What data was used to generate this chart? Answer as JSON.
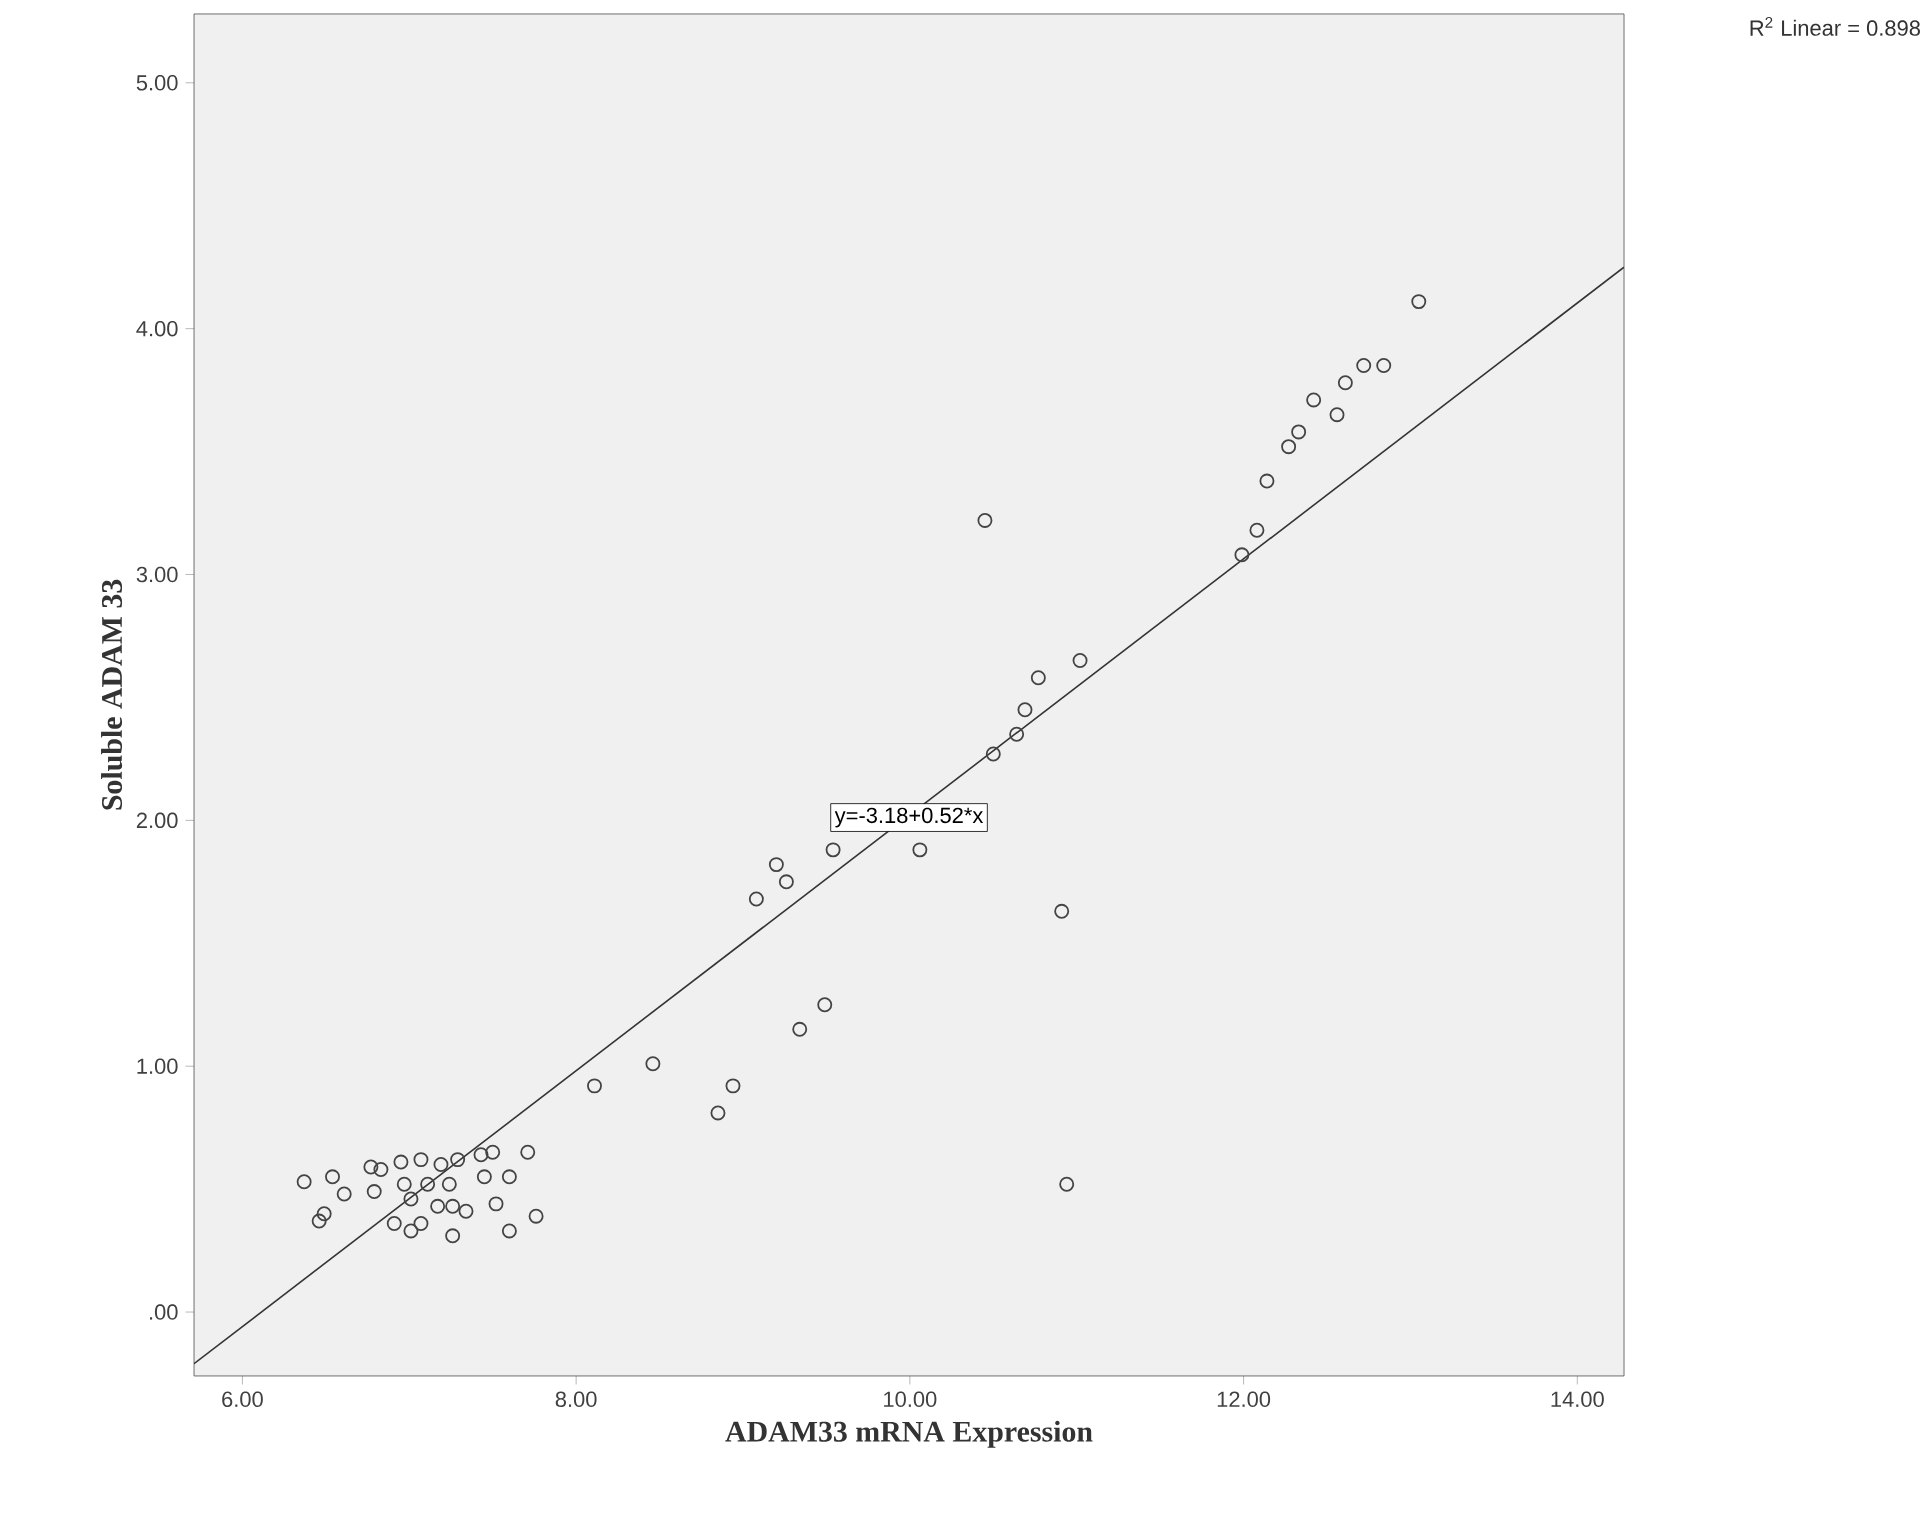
{
  "chart_data": {
    "type": "scatter",
    "xlabel": "ADAM33 mRNA Expression",
    "ylabel": "Soluble ADAM 33",
    "xlim": [
      5.71,
      14.28
    ],
    "ylim": [
      -0.26,
      5.28
    ],
    "xticks": [
      {
        "value": 6,
        "label": "6.00"
      },
      {
        "value": 8,
        "label": "8.00"
      },
      {
        "value": 10,
        "label": "10.00"
      },
      {
        "value": 12,
        "label": "12.00"
      },
      {
        "value": 14,
        "label": "14.00"
      }
    ],
    "yticks": [
      {
        "value": 0,
        "label": ".00"
      },
      {
        "value": 1,
        "label": "1.00"
      },
      {
        "value": 2,
        "label": "2.00"
      },
      {
        "value": 3,
        "label": "3.00"
      },
      {
        "value": 4,
        "label": "4.00"
      },
      {
        "value": 5,
        "label": "5.00"
      }
    ],
    "grid": false,
    "marker": "circle",
    "series": [
      {
        "color": "#444444",
        "x": [
          13.05,
          12.84,
          12.72,
          12.61,
          12.56,
          12.42,
          12.33,
          12.27,
          12.14,
          12.08,
          11.99,
          10.45,
          11.02,
          10.77,
          10.69,
          10.64,
          10.5,
          9.54,
          10.06,
          9.2,
          9.26,
          9.08,
          10.91,
          9.49,
          9.34,
          8.46,
          8.11,
          8.94,
          8.85,
          10.94,
          6.37,
          6.54,
          6.61,
          6.49,
          6.46,
          6.77,
          6.83,
          6.79,
          6.95,
          7.07,
          7.19,
          7.29,
          7.43,
          7.5,
          7.71,
          6.97,
          7.01,
          7.11,
          7.24,
          7.17,
          7.26,
          7.45,
          7.6,
          7.34,
          7.52,
          6.91,
          7.01,
          7.07,
          7.26,
          7.6,
          7.76
        ],
        "values": [
          4.11,
          3.85,
          3.85,
          3.78,
          3.65,
          3.71,
          3.58,
          3.52,
          3.38,
          3.18,
          3.08,
          3.22,
          2.65,
          2.58,
          2.45,
          2.35,
          2.27,
          1.88,
          1.88,
          1.82,
          1.75,
          1.68,
          1.63,
          1.25,
          1.15,
          1.01,
          0.92,
          0.92,
          0.81,
          0.52,
          0.53,
          0.55,
          0.48,
          0.4,
          0.37,
          0.59,
          0.58,
          0.49,
          0.61,
          0.62,
          0.6,
          0.62,
          0.64,
          0.65,
          0.65,
          0.52,
          0.46,
          0.52,
          0.52,
          0.43,
          0.43,
          0.55,
          0.55,
          0.41,
          0.44,
          0.36,
          0.33,
          0.36,
          0.31,
          0.33,
          0.39
        ]
      },
      {
        "type": "line",
        "color": "#333333",
        "marker": "none",
        "line_style": "solid",
        "x": [
          5.71,
          14.28
        ],
        "values": [
          -0.21,
          4.25
        ]
      }
    ],
    "annotations": [
      "y=-3.18+0.52*x",
      "R$^{2}$ Linear = 0.898"
    ]
  }
}
